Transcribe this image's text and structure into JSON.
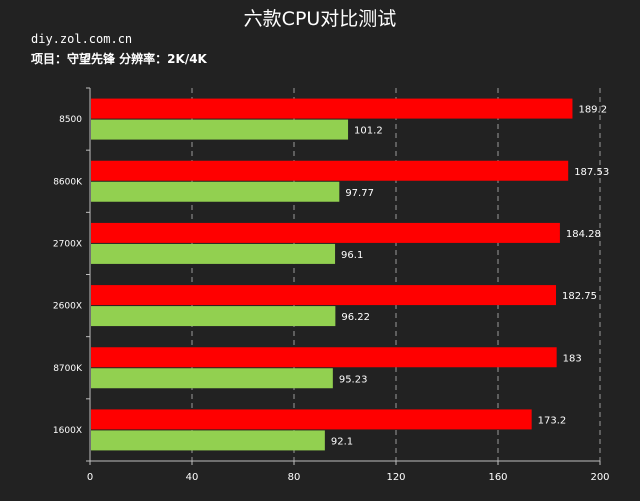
{
  "header": {
    "title": "六款CPU对比测试",
    "source": "diy.zol.com.cn",
    "project": "项目：守望先锋 分辨率：2K/4K"
  },
  "chart_data": {
    "type": "bar",
    "orientation": "horizontal",
    "categories": [
      "8500",
      "8600K",
      "2700X",
      "2600X",
      "8700K",
      "1600X"
    ],
    "series": [
      {
        "values": [
          189.2,
          187.53,
          184.28,
          182.75,
          183,
          173.2
        ],
        "color": "#ff0000"
      },
      {
        "values": [
          101.2,
          97.77,
          96.1,
          96.22,
          95.23,
          92.1
        ],
        "color": "#92d050"
      }
    ],
    "data_labels": [
      [
        "189.2",
        "187.53",
        "184.28",
        "182.75",
        "183",
        "173.2"
      ],
      [
        "101.2",
        "97.77",
        "96.1",
        "96.22",
        "95.23",
        "92.1"
      ]
    ],
    "xlim": [
      0,
      200
    ],
    "xticks": [
      0,
      40,
      80,
      120,
      160,
      200
    ],
    "grid": true,
    "legend": "none"
  }
}
